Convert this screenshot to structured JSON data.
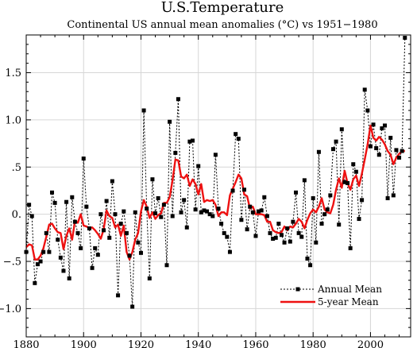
{
  "chart_data": {
    "type": "line",
    "title": "U.S.Temperature",
    "subtitle": "Continental US annual mean anomalies (°C) vs 1951−1980",
    "xlabel": "",
    "ylabel": "",
    "xlim": [
      1880,
      2014
    ],
    "ylim": [
      -1.3,
      1.9
    ],
    "grid": true,
    "legend_placement": "bottom-right",
    "x_ticks": [
      1880,
      1900,
      1920,
      1940,
      1960,
      1980,
      2000
    ],
    "x_tick_labels": [
      "1880",
      "1900",
      "1920",
      "1940",
      "1960",
      "1980",
      "2000"
    ],
    "y_ticks": [
      -1.0,
      -0.5,
      0.0,
      0.5,
      1.0,
      1.5
    ],
    "y_tick_labels": [
      "−1.0",
      "−.5",
      "0.",
      ".5",
      "1.0",
      "1.5"
    ],
    "x": [
      1880,
      1881,
      1882,
      1883,
      1884,
      1885,
      1886,
      1887,
      1888,
      1889,
      1890,
      1891,
      1892,
      1893,
      1894,
      1895,
      1896,
      1897,
      1898,
      1899,
      1900,
      1901,
      1902,
      1903,
      1904,
      1905,
      1906,
      1907,
      1908,
      1909,
      1910,
      1911,
      1912,
      1913,
      1914,
      1915,
      1916,
      1917,
      1918,
      1919,
      1920,
      1921,
      1922,
      1923,
      1924,
      1925,
      1926,
      1927,
      1928,
      1929,
      1930,
      1931,
      1932,
      1933,
      1934,
      1935,
      1936,
      1937,
      1938,
      1939,
      1940,
      1941,
      1942,
      1943,
      1944,
      1945,
      1946,
      1947,
      1948,
      1949,
      1950,
      1951,
      1952,
      1953,
      1954,
      1955,
      1956,
      1957,
      1958,
      1959,
      1960,
      1961,
      1962,
      1963,
      1964,
      1965,
      1966,
      1967,
      1968,
      1969,
      1970,
      1971,
      1972,
      1973,
      1974,
      1975,
      1976,
      1977,
      1978,
      1979,
      1980,
      1981,
      1982,
      1983,
      1984,
      1985,
      1986,
      1987,
      1988,
      1989,
      1990,
      1991,
      1992,
      1993,
      1994,
      1995,
      1996,
      1997,
      1998,
      1999,
      2000,
      2001,
      2002,
      2003,
      2004,
      2005,
      2006,
      2007,
      2008,
      2009,
      2010,
      2011,
      2012
    ],
    "series": [
      {
        "name": "Annual Mean",
        "color": "#000000",
        "style": "dotted-with-square-markers",
        "values": [
          -0.4,
          0.1,
          -0.02,
          -0.73,
          -0.53,
          -0.5,
          -0.4,
          -0.2,
          -0.4,
          0.23,
          0.12,
          -0.27,
          -0.46,
          -0.6,
          0.13,
          -0.68,
          0.18,
          -0.08,
          -0.2,
          -0.36,
          0.59,
          0.08,
          -0.15,
          -0.57,
          -0.36,
          -0.43,
          0.0,
          -0.17,
          0.14,
          -0.25,
          0.35,
          0.0,
          -0.86,
          -0.1,
          0.03,
          -0.2,
          -0.44,
          -0.98,
          0.02,
          -0.3,
          -0.41,
          1.1,
          0.06,
          -0.68,
          0.37,
          0.01,
          0.17,
          -0.03,
          0.1,
          -0.54,
          0.98,
          -0.02,
          0.65,
          1.22,
          0.02,
          0.15,
          -0.14,
          0.77,
          0.78,
          0.05,
          0.51,
          0.02,
          0.04,
          0.03,
          0.0,
          -0.02,
          0.63,
          0.06,
          -0.1,
          -0.2,
          -0.24,
          -0.4,
          0.25,
          0.85,
          0.8,
          -0.06,
          0.26,
          -0.16,
          0.08,
          0.02,
          -0.23,
          0.03,
          0.04,
          0.18,
          -0.02,
          -0.2,
          -0.26,
          -0.25,
          -0.1,
          -0.22,
          -0.3,
          -0.15,
          -0.29,
          -0.08,
          0.23,
          -0.2,
          -0.24,
          0.36,
          -0.47,
          -0.54,
          0.17,
          -0.3,
          0.66,
          -0.1,
          0.0,
          0.05,
          0.2,
          0.69,
          0.77,
          -0.11,
          0.9,
          0.34,
          0.33,
          -0.36,
          0.53,
          0.45,
          -0.05,
          0.15,
          1.32,
          1.1,
          0.72,
          0.95,
          0.7,
          0.63,
          0.91,
          0.94,
          0.17,
          0.81,
          0.2,
          0.68,
          0.6,
          0.67,
          1.87
        ]
      },
      {
        "name": "5-year Mean",
        "color": "#ee1111",
        "style": "solid",
        "values": [
          -0.35,
          -0.32,
          -0.33,
          -0.48,
          -0.48,
          -0.44,
          -0.36,
          -0.24,
          -0.11,
          -0.1,
          -0.15,
          -0.19,
          -0.2,
          -0.37,
          -0.23,
          -0.15,
          -0.27,
          -0.07,
          -0.09,
          0.0,
          -0.12,
          -0.13,
          -0.15,
          -0.14,
          -0.17,
          -0.21,
          -0.26,
          -0.16,
          0.04,
          -0.02,
          -0.04,
          -0.14,
          -0.11,
          -0.23,
          -0.12,
          -0.4,
          -0.48,
          -0.4,
          -0.27,
          -0.2,
          0.03,
          0.15,
          0.08,
          -0.04,
          0.02,
          -0.05,
          -0.01,
          0.01,
          0.12,
          0.12,
          0.18,
          0.36,
          0.58,
          0.57,
          0.4,
          0.38,
          0.42,
          0.3,
          0.37,
          0.32,
          0.21,
          0.32,
          0.13,
          0.15,
          0.14,
          0.15,
          0.1,
          -0.02,
          0.02,
          0.02,
          -0.01,
          0.2,
          0.27,
          0.34,
          0.42,
          0.38,
          0.21,
          0.19,
          0.06,
          0.08,
          0.0,
          0.0,
          0.0,
          -0.01,
          -0.08,
          -0.08,
          -0.17,
          -0.19,
          -0.2,
          -0.19,
          -0.13,
          -0.17,
          -0.13,
          -0.14,
          -0.1,
          -0.05,
          -0.08,
          -0.15,
          -0.06,
          0.01,
          0.05,
          0.02,
          0.08,
          0.17,
          0.05,
          0.02,
          0.01,
          0.1,
          0.26,
          0.38,
          0.28,
          0.46,
          0.33,
          0.26,
          0.37,
          0.41,
          0.3,
          0.43,
          0.58,
          0.74,
          0.94,
          0.81,
          0.78,
          0.82,
          0.79,
          0.74,
          0.67,
          0.63,
          0.53,
          0.6,
          0.64,
          0.67,
          0.67
        ]
      }
    ]
  }
}
